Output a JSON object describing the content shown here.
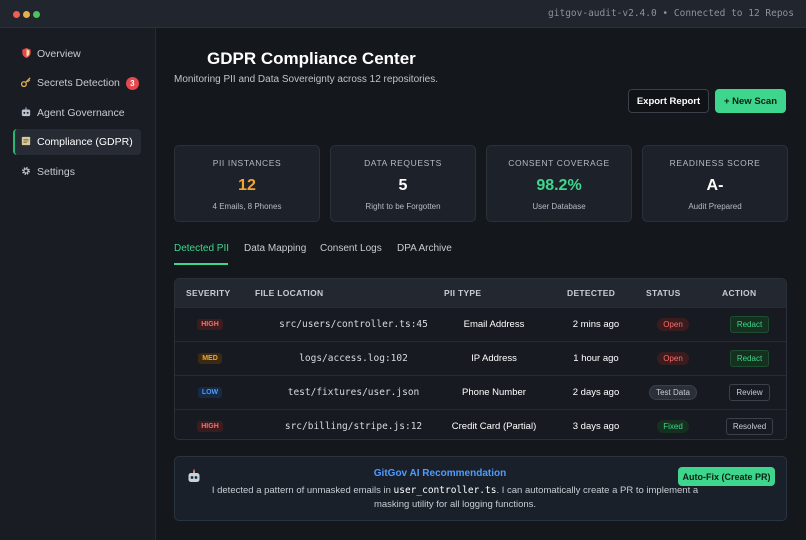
{
  "window": {
    "title_right": "gitgov-audit-v2.4.0 • Connected to 12 Repos"
  },
  "sidebar": {
    "items": [
      {
        "label": "Overview",
        "icon": "shield-icon"
      },
      {
        "label": "Secrets Detection",
        "icon": "key-icon",
        "badge": "3"
      },
      {
        "label": "Agent Governance",
        "icon": "robot-icon"
      },
      {
        "label": "Compliance (GDPR)",
        "icon": "document-icon",
        "active": true
      },
      {
        "label": "Settings",
        "icon": "gear-icon"
      }
    ]
  },
  "header": {
    "title": "GDPR Compliance Center",
    "subtitle": "Monitoring PII and Data Sovereignty across 12 repositories.",
    "export_label": "Export Report",
    "new_scan_label": "+ New Scan"
  },
  "stats": [
    {
      "label": "PII INSTANCES",
      "value": "12",
      "sub": "4 Emails, 8 Phones",
      "color": "#f4a52c"
    },
    {
      "label": "DATA REQUESTS",
      "value": "5",
      "sub": "Right to be Forgotten",
      "color": "#ffffff"
    },
    {
      "label": "CONSENT COVERAGE",
      "value": "98.2%",
      "sub": "User Database",
      "color": "#3dd68c"
    },
    {
      "label": "READINESS SCORE",
      "value": "A-",
      "sub": "Audit Prepared",
      "color": "#ffffff"
    }
  ],
  "tabs": [
    {
      "label": "Detected PII",
      "active": true
    },
    {
      "label": "Data Mapping"
    },
    {
      "label": "Consent Logs"
    },
    {
      "label": "DPA Archive"
    }
  ],
  "table": {
    "headers": [
      "SEVERITY",
      "FILE LOCATION",
      "PII TYPE",
      "DETECTED",
      "STATUS",
      "ACTION"
    ],
    "rows": [
      {
        "severity": "HIGH",
        "file": "src/users/controller.ts:45",
        "type": "Email Address",
        "detected": "2 mins ago",
        "status": "Open",
        "action": "Redact"
      },
      {
        "severity": "MED",
        "file": "logs/access.log:102",
        "type": "IP Address",
        "detected": "1 hour ago",
        "status": "Open",
        "action": "Redact"
      },
      {
        "severity": "LOW",
        "file": "test/fixtures/user.json",
        "type": "Phone Number",
        "detected": "2 days ago",
        "status": "Test Data",
        "action": "Review"
      },
      {
        "severity": "HIGH",
        "file": "src/billing/stripe.js:12",
        "type": "Credit Card (Partial)",
        "detected": "3 days ago",
        "status": "Fixed",
        "action": "Resolved"
      }
    ]
  },
  "ai": {
    "title": "GitGov AI Recommendation",
    "text_before": "I detected a pattern of unmasked emails in ",
    "code": "user_controller.ts",
    "text_after": ". I can automatically create a PR to implement a masking utility for all logging functions.",
    "button_label": "Auto-Fix (Create PR)"
  },
  "colors": {
    "accent": "#3dd68c",
    "danger": "#e5484d",
    "info": "#4e9bff",
    "warning": "#f4a52c"
  }
}
